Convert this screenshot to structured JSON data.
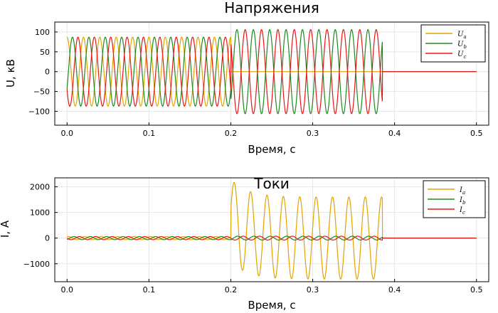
{
  "chart_data": [
    {
      "type": "line",
      "title": "Напряжения",
      "xlabel": "Время, с",
      "ylabel": "U, кВ",
      "xlim": [
        -0.015,
        0.515
      ],
      "ylim": [
        -135,
        125
      ],
      "xticks": [
        0.0,
        0.1,
        0.2,
        0.3,
        0.4,
        0.5
      ],
      "xtick_labels": [
        "0.0",
        "0.1",
        "0.2",
        "0.3",
        "0.4",
        "0.5"
      ],
      "yticks": [
        -100,
        -50,
        0,
        50,
        100
      ],
      "ytick_labels": [
        "−100",
        "−50",
        "0",
        "50",
        "100"
      ],
      "grid": true,
      "legend_position": "top-right",
      "series": [
        {
          "name": "U",
          "subscript": "a",
          "color": "#e3a400",
          "segments": [
            {
              "t_start": 0.0,
              "t_end": 0.2,
              "amplitude": 87,
              "freq": 50,
              "phase_deg": 90
            },
            {
              "t_start": 0.2,
              "t_end": 0.5,
              "amplitude": 0,
              "freq": 50,
              "phase_deg": 90
            }
          ]
        },
        {
          "name": "U",
          "subscript": "b",
          "color": "#1e8a1e",
          "segments": [
            {
              "t_start": 0.0,
              "t_end": 0.2,
              "amplitude": 87,
              "freq": 50,
              "phase_deg": -30
            },
            {
              "t_start": 0.2,
              "t_end": 0.385,
              "amplitude": 106,
              "freq": 50,
              "phase_deg": -45
            },
            {
              "t_start": 0.385,
              "t_end": 0.5,
              "amplitude": 0,
              "freq": 50,
              "phase_deg": 0
            }
          ]
        },
        {
          "name": "U",
          "subscript": "c",
          "color": "#e81717",
          "segments": [
            {
              "t_start": 0.0,
              "t_end": 0.2,
              "amplitude": 87,
              "freq": 50,
              "phase_deg": 210
            },
            {
              "t_start": 0.2,
              "t_end": 0.385,
              "amplitude": 106,
              "freq": 50,
              "phase_deg": 135
            },
            {
              "t_start": 0.385,
              "t_end": 0.5,
              "amplitude": 0,
              "freq": 50,
              "phase_deg": 0
            }
          ]
        }
      ]
    },
    {
      "type": "line",
      "title": "Токи",
      "xlabel": "Время, с",
      "ylabel": "I, А",
      "xlim": [
        -0.015,
        0.515
      ],
      "ylim": [
        -1700,
        2350
      ],
      "xticks": [
        0.0,
        0.1,
        0.2,
        0.3,
        0.4,
        0.5
      ],
      "xtick_labels": [
        "0.0",
        "0.1",
        "0.2",
        "0.3",
        "0.4",
        "0.5"
      ],
      "yticks": [
        -1000,
        0,
        1000,
        2000
      ],
      "ytick_labels": [
        "−1000",
        "0",
        "1000",
        "2000"
      ],
      "grid": true,
      "legend_position": "top-right",
      "series": [
        {
          "name": "I",
          "subscript": "a",
          "color": "#e3a400",
          "segments": [
            {
              "t_start": 0.0,
              "t_end": 0.2,
              "amplitude": 60,
              "freq": 50,
              "phase_deg": 60
            },
            {
              "t_start": 0.2,
              "t_end": 0.385,
              "amplitude": 1600,
              "freq": 50,
              "phase_deg": 15,
              "dc_offset": 700,
              "dc_tau": 0.02
            },
            {
              "t_start": 0.385,
              "t_end": 0.5,
              "amplitude": 0,
              "freq": 50,
              "phase_deg": 0
            }
          ]
        },
        {
          "name": "I",
          "subscript": "b",
          "color": "#1e8a1e",
          "segments": [
            {
              "t_start": 0.0,
              "t_end": 0.2,
              "amplitude": 60,
              "freq": 50,
              "phase_deg": -60
            },
            {
              "t_start": 0.2,
              "t_end": 0.385,
              "amplitude": 75,
              "freq": 50,
              "phase_deg": -60
            },
            {
              "t_start": 0.385,
              "t_end": 0.5,
              "amplitude": 0,
              "freq": 50,
              "phase_deg": 0
            }
          ]
        },
        {
          "name": "I",
          "subscript": "c",
          "color": "#e81717",
          "segments": [
            {
              "t_start": 0.0,
              "t_end": 0.2,
              "amplitude": 60,
              "freq": 50,
              "phase_deg": 180
            },
            {
              "t_start": 0.2,
              "t_end": 0.385,
              "amplitude": 75,
              "freq": 50,
              "phase_deg": 180
            },
            {
              "t_start": 0.385,
              "t_end": 0.5,
              "amplitude": 0,
              "freq": 50,
              "phase_deg": 0
            }
          ]
        }
      ]
    }
  ]
}
